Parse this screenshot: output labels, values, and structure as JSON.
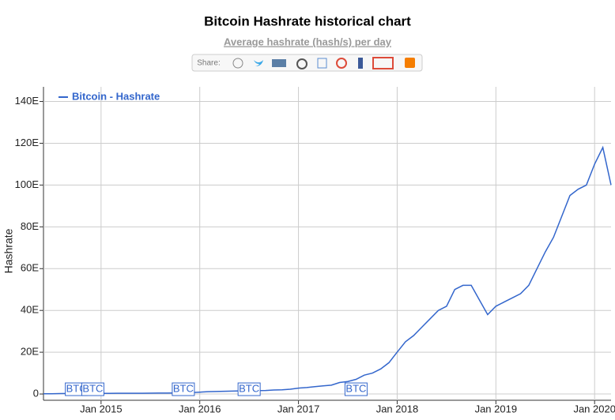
{
  "chart_data": {
    "type": "line",
    "title": "Bitcoin Hashrate historical chart",
    "subtitle": "Average hashrate (hash/s) per day",
    "share_label": "Share:",
    "y_label": "Hashrate",
    "x": [
      "2014-06",
      "2014-07",
      "2014-08",
      "2014-09",
      "2014-10",
      "2014-11",
      "2014-12",
      "2015-01",
      "2015-02",
      "2015-03",
      "2015-04",
      "2015-05",
      "2015-06",
      "2015-07",
      "2015-08",
      "2015-09",
      "2015-10",
      "2015-11",
      "2015-12",
      "2016-01",
      "2016-02",
      "2016-03",
      "2016-04",
      "2016-05",
      "2016-06",
      "2016-07",
      "2016-08",
      "2016-09",
      "2016-10",
      "2016-11",
      "2016-12",
      "2017-01",
      "2017-02",
      "2017-03",
      "2017-04",
      "2017-05",
      "2017-06",
      "2017-07",
      "2017-08",
      "2017-09",
      "2017-10",
      "2017-11",
      "2017-12",
      "2018-01",
      "2018-02",
      "2018-03",
      "2018-04",
      "2018-05",
      "2018-06",
      "2018-07",
      "2018-08",
      "2018-09",
      "2018-10",
      "2018-11",
      "2018-12",
      "2019-01",
      "2019-02",
      "2019-03",
      "2019-04",
      "2019-05",
      "2019-06",
      "2019-07",
      "2019-08",
      "2019-09",
      "2019-10",
      "2019-11",
      "2019-12",
      "2020-01",
      "2020-02",
      "2020-03"
    ],
    "series": [
      {
        "name": "Bitcoin - Hashrate",
        "color": "#3366cc",
        "values": [
          0.1,
          0.15,
          0.2,
          0.25,
          0.27,
          0.28,
          0.3,
          0.33,
          0.34,
          0.35,
          0.36,
          0.37,
          0.38,
          0.4,
          0.42,
          0.45,
          0.5,
          0.6,
          0.7,
          0.9,
          1.1,
          1.2,
          1.3,
          1.4,
          1.5,
          1.5,
          1.6,
          1.7,
          1.9,
          2.0,
          2.3,
          2.8,
          3.1,
          3.5,
          3.9,
          4.2,
          5.5,
          6.0,
          7.0,
          9.0,
          10.0,
          12.0,
          15.0,
          20.0,
          25.0,
          28.0,
          32.0,
          36.0,
          40.0,
          42.0,
          50.0,
          52.0,
          52.0,
          45.0,
          38.0,
          42.0,
          44.0,
          46.0,
          48.0,
          52.0,
          60.0,
          68.0,
          75.0,
          85.0,
          95.0,
          98.0,
          100.0,
          110.0,
          118.0,
          100.0
        ]
      }
    ],
    "annotations": [
      {
        "x": "2014-10",
        "label": "BTC"
      },
      {
        "x": "2014-12",
        "label": "BTC"
      },
      {
        "x": "2015-11",
        "label": "BTC"
      },
      {
        "x": "2016-07",
        "label": "BTC"
      },
      {
        "x": "2017-08",
        "label": "BTC"
      }
    ],
    "xlim": [
      "2014-06",
      "2020-03"
    ],
    "xticks": [
      {
        "value": "2015-01",
        "label": "Jan 2015"
      },
      {
        "value": "2016-01",
        "label": "Jan 2016"
      },
      {
        "value": "2017-01",
        "label": "Jan 2017"
      },
      {
        "value": "2018-01",
        "label": "Jan 2018"
      },
      {
        "value": "2019-01",
        "label": "Jan 2019"
      },
      {
        "value": "2020-01",
        "label": "Jan 2020"
      }
    ],
    "ylim": [
      -3,
      147
    ],
    "yticks": [
      0,
      {
        "value": 20,
        "label": "20E"
      },
      {
        "value": 40,
        "label": "40E"
      },
      {
        "value": 60,
        "label": "60E"
      },
      {
        "value": 80,
        "label": "80E"
      },
      {
        "value": 100,
        "label": "100E"
      },
      {
        "value": 120,
        "label": "120E"
      },
      {
        "value": 140,
        "label": "140E"
      }
    ],
    "grid": true,
    "legend": "top-left"
  }
}
